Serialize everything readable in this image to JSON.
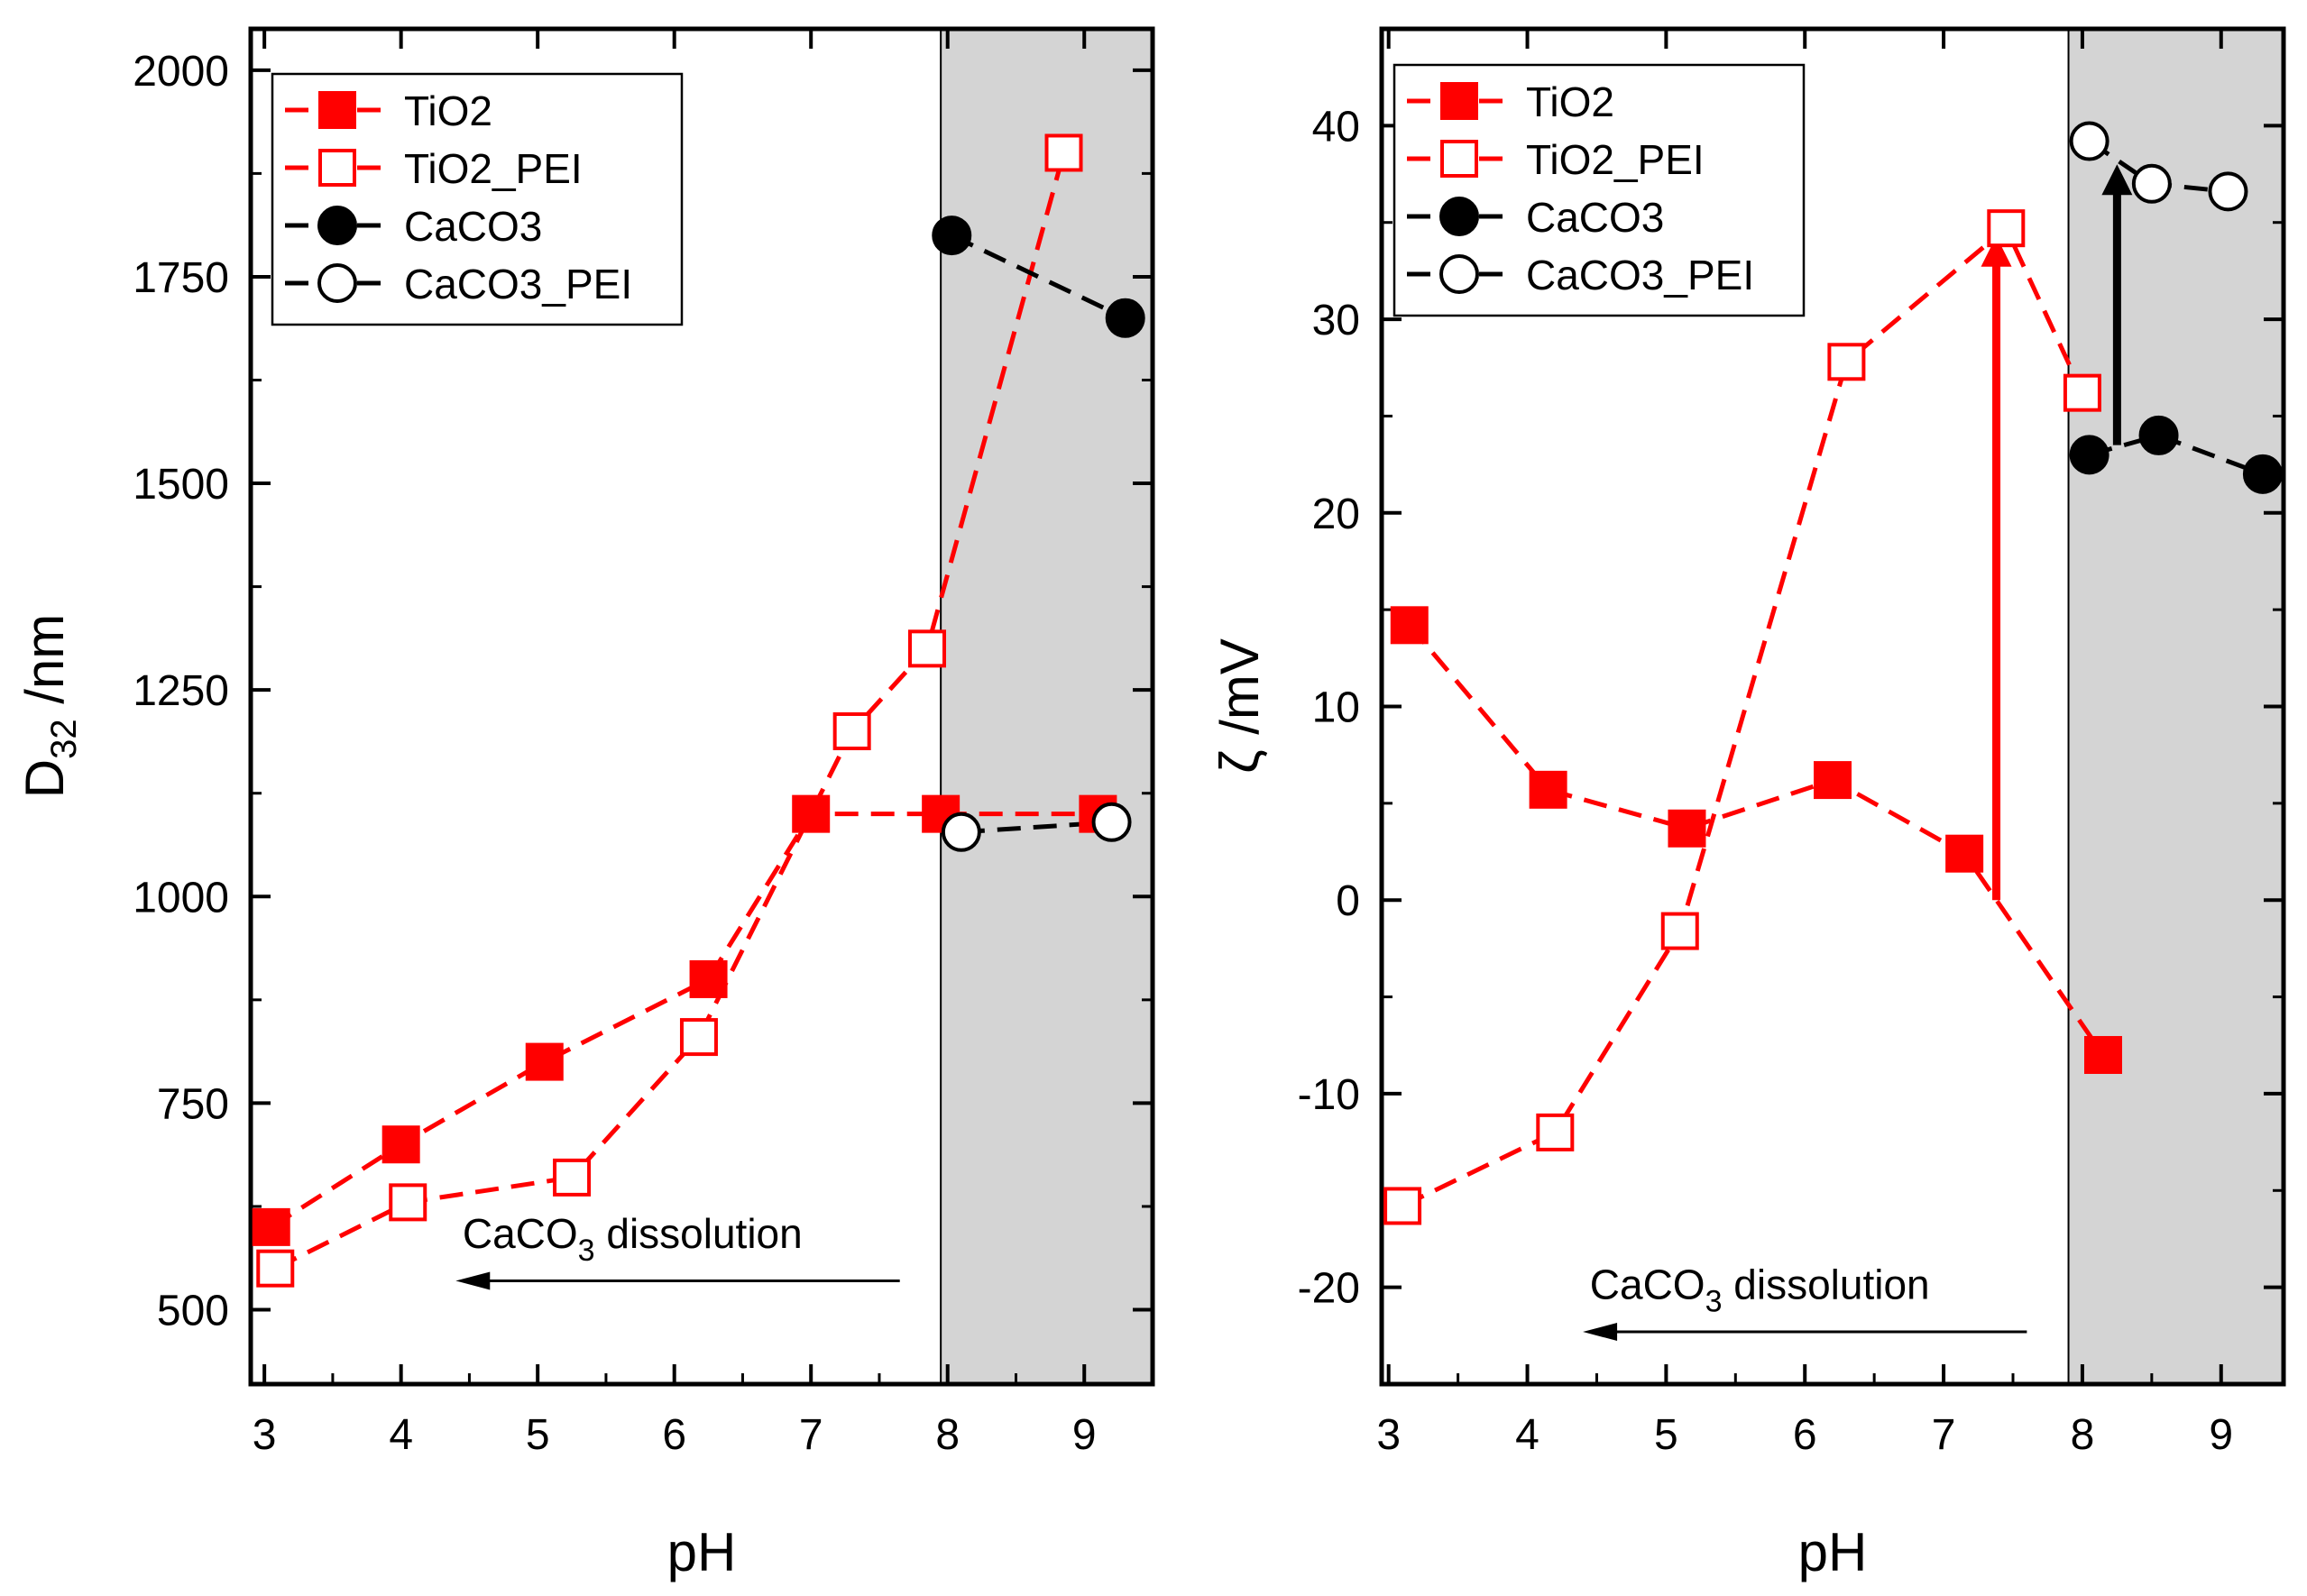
{
  "colors": {
    "red": "#ff0000",
    "black": "#000000",
    "shade": "#d4d4d4",
    "axis": "#000000"
  },
  "chart_data": [
    {
      "type": "line",
      "panel": "left",
      "xlabel": "pH",
      "ylabel_main": "D",
      "ylabel_sub": "32",
      "ylabel_rest": " /nm",
      "xlim": [
        2.9,
        9.5
      ],
      "ylim": [
        410,
        2050
      ],
      "xticks": [
        3,
        4,
        5,
        6,
        7,
        8,
        9
      ],
      "xtick_labels": [
        "3",
        "4",
        "5",
        "6",
        "7",
        "8",
        "9"
      ],
      "yticks": [
        500,
        750,
        1000,
        1250,
        1500,
        1750,
        2000
      ],
      "ytick_labels": [
        "500",
        "750",
        "1000",
        "1250",
        "1500",
        "1750",
        "2000"
      ],
      "shaded_region": {
        "x_from": 7.95,
        "x_to": 9.5
      },
      "annotation": {
        "text_main": "CaCO",
        "text_sub": "3",
        "text_rest": " dissolution",
        "arrow_from_x": 7.65,
        "arrow_to_x": 4.4,
        "arrow_y": 535,
        "text_x": 4.45,
        "text_y": 575
      },
      "legend_position": "top-left",
      "series": [
        {
          "name": "TiO2",
          "color": "#ff0000",
          "marker": "square",
          "filled": true,
          "x": [
            3.05,
            4.0,
            5.05,
            6.25,
            7.0,
            7.95,
            9.1
          ],
          "y": [
            600,
            700,
            800,
            900,
            1100,
            1100,
            1100
          ]
        },
        {
          "name": "TiO2_PEI",
          "color": "#ff0000",
          "marker": "square",
          "filled": false,
          "x": [
            3.08,
            4.05,
            5.25,
            6.18,
            7.3,
            7.85,
            8.85
          ],
          "y": [
            550,
            630,
            660,
            830,
            1200,
            1300,
            1900
          ]
        },
        {
          "name": "CaCO3",
          "color": "#000000",
          "marker": "circle",
          "filled": true,
          "x": [
            8.03,
            9.3
          ],
          "y": [
            1800,
            1700
          ]
        },
        {
          "name": "CaCO3_PEI",
          "color": "#000000",
          "marker": "circle",
          "filled": false,
          "x": [
            8.1,
            9.2
          ],
          "y": [
            1078,
            1090
          ]
        }
      ]
    },
    {
      "type": "line",
      "panel": "right",
      "xlabel": "pH",
      "ylabel_main": "ζ",
      "ylabel_sub": "",
      "ylabel_rest": " /mV",
      "xlim": [
        2.95,
        9.45
      ],
      "ylim": [
        -25,
        45
      ],
      "xticks": [
        3,
        4,
        5,
        6,
        7,
        8,
        9
      ],
      "xtick_labels": [
        "3",
        "4",
        "5",
        "6",
        "7",
        "8",
        "9"
      ],
      "yticks": [
        -20,
        -10,
        0,
        10,
        20,
        30,
        40
      ],
      "ytick_labels": [
        "-20",
        "-10",
        "0",
        "10",
        "20",
        "30",
        "40"
      ],
      "shaded_region": {
        "x_from": 7.9,
        "x_to": 9.45
      },
      "annotation": {
        "text_main": "CaCO",
        "text_sub": "3",
        "text_rest": " dissolution",
        "arrow_from_x": 7.6,
        "arrow_to_x": 4.4,
        "arrow_y": -22.3,
        "text_x": 4.45,
        "text_y": -20.6
      },
      "legend_position": "top-left",
      "series": [
        {
          "name": "TiO2",
          "color": "#ff0000",
          "marker": "square",
          "filled": true,
          "x": [
            3.15,
            4.15,
            5.15,
            6.2,
            7.15,
            8.15
          ],
          "y": [
            14.2,
            5.7,
            3.7,
            6.2,
            2.4,
            -8.0
          ]
        },
        {
          "name": "TiO2_PEI",
          "color": "#ff0000",
          "marker": "square",
          "filled": false,
          "x": [
            3.1,
            4.2,
            5.1,
            6.3,
            7.45,
            8.0
          ],
          "y": [
            -15.8,
            -12.0,
            -1.6,
            27.8,
            34.7,
            26.2
          ]
        },
        {
          "name": "CaCO3",
          "color": "#000000",
          "marker": "circle",
          "filled": true,
          "x": [
            8.05,
            8.55,
            9.3
          ],
          "y": [
            23.0,
            24.0,
            22.0
          ]
        },
        {
          "name": "CaCO3_PEI",
          "color": "#000000",
          "marker": "circle",
          "filled": false,
          "x": [
            8.05,
            8.5,
            9.05
          ],
          "y": [
            39.2,
            37.0,
            36.6
          ]
        }
      ],
      "arrows": [
        {
          "color": "#ff0000",
          "x": 7.38,
          "y_from": 0.0,
          "y_to": 34.3
        },
        {
          "color": "#000000",
          "x": 8.25,
          "y_from": 23.5,
          "y_to": 38.0
        }
      ]
    }
  ]
}
